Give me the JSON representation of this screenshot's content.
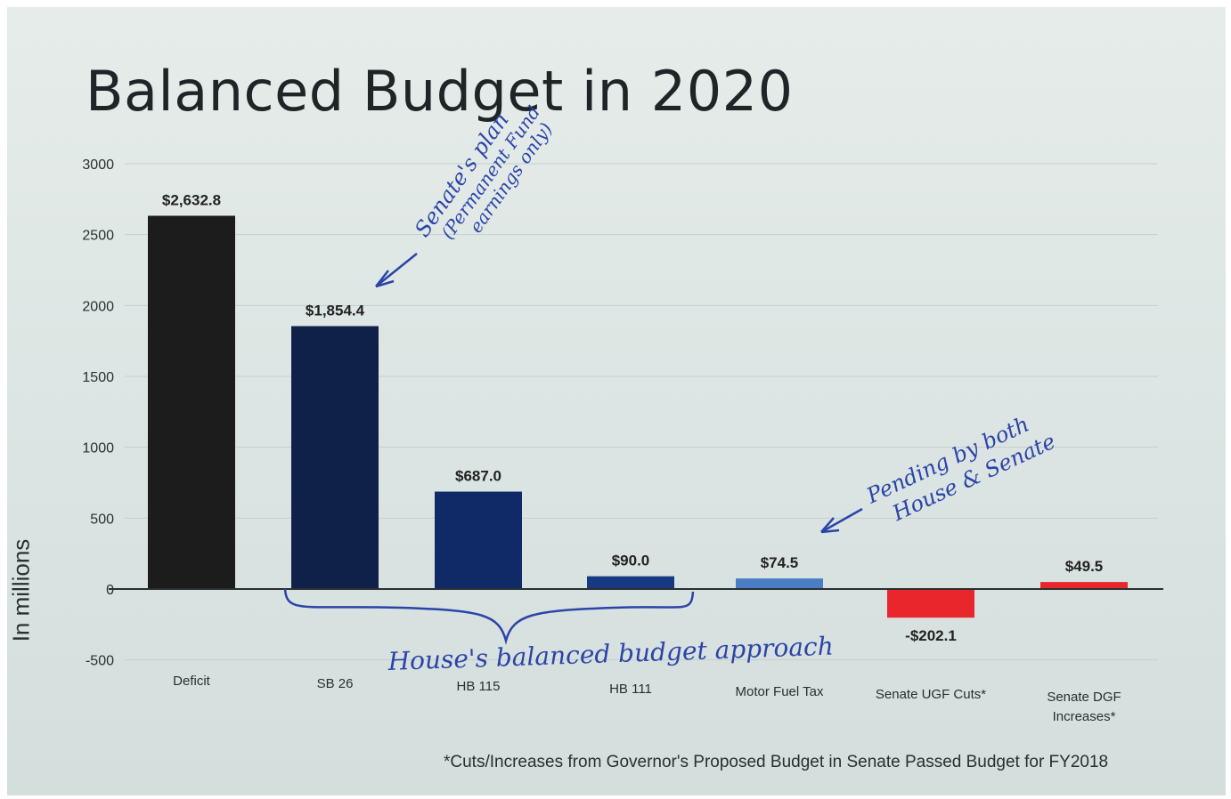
{
  "chart_data": {
    "type": "bar",
    "title": "Balanced Budget in 2020",
    "ylabel": "In millions",
    "xlabel": "",
    "ylim": [
      -500,
      3000
    ],
    "yticks": [
      "3000",
      "2500",
      "2000",
      "1500",
      "1000",
      "500",
      "0",
      "-500"
    ],
    "ytick_values": [
      3000,
      2500,
      2000,
      1500,
      1000,
      500,
      0,
      -500
    ],
    "grid": true,
    "categories": [
      "Deficit",
      "SB 26",
      "HB 115",
      "HB 111",
      "Motor Fuel Tax",
      "Senate UGF Cuts*",
      "Senate DGF Increases*"
    ],
    "values": [
      2632.8,
      1854.4,
      687.0,
      90.0,
      74.5,
      -202.1,
      49.5
    ],
    "data_labels": [
      "$2,632.8",
      "$1,854.4",
      "$687.0",
      "$90.0",
      "$74.5",
      "-$202.1",
      "$49.5"
    ],
    "colors": [
      "#1c1c1c",
      "#0f2149",
      "#0f2a66",
      "#163a82",
      "#4a7ec4",
      "#e8262b",
      "#e8262b"
    ],
    "footnote": "*Cuts/Increases from Governor's Proposed Budget in Senate Passed Budget for FY2018",
    "annotations": {
      "senate_lines": [
        "Senate's plan",
        "(Permanent Fund",
        "earnings only)"
      ],
      "pending_lines": [
        "Pending by both",
        "House & Senate"
      ],
      "house_text": "House's balanced budget approach"
    }
  }
}
